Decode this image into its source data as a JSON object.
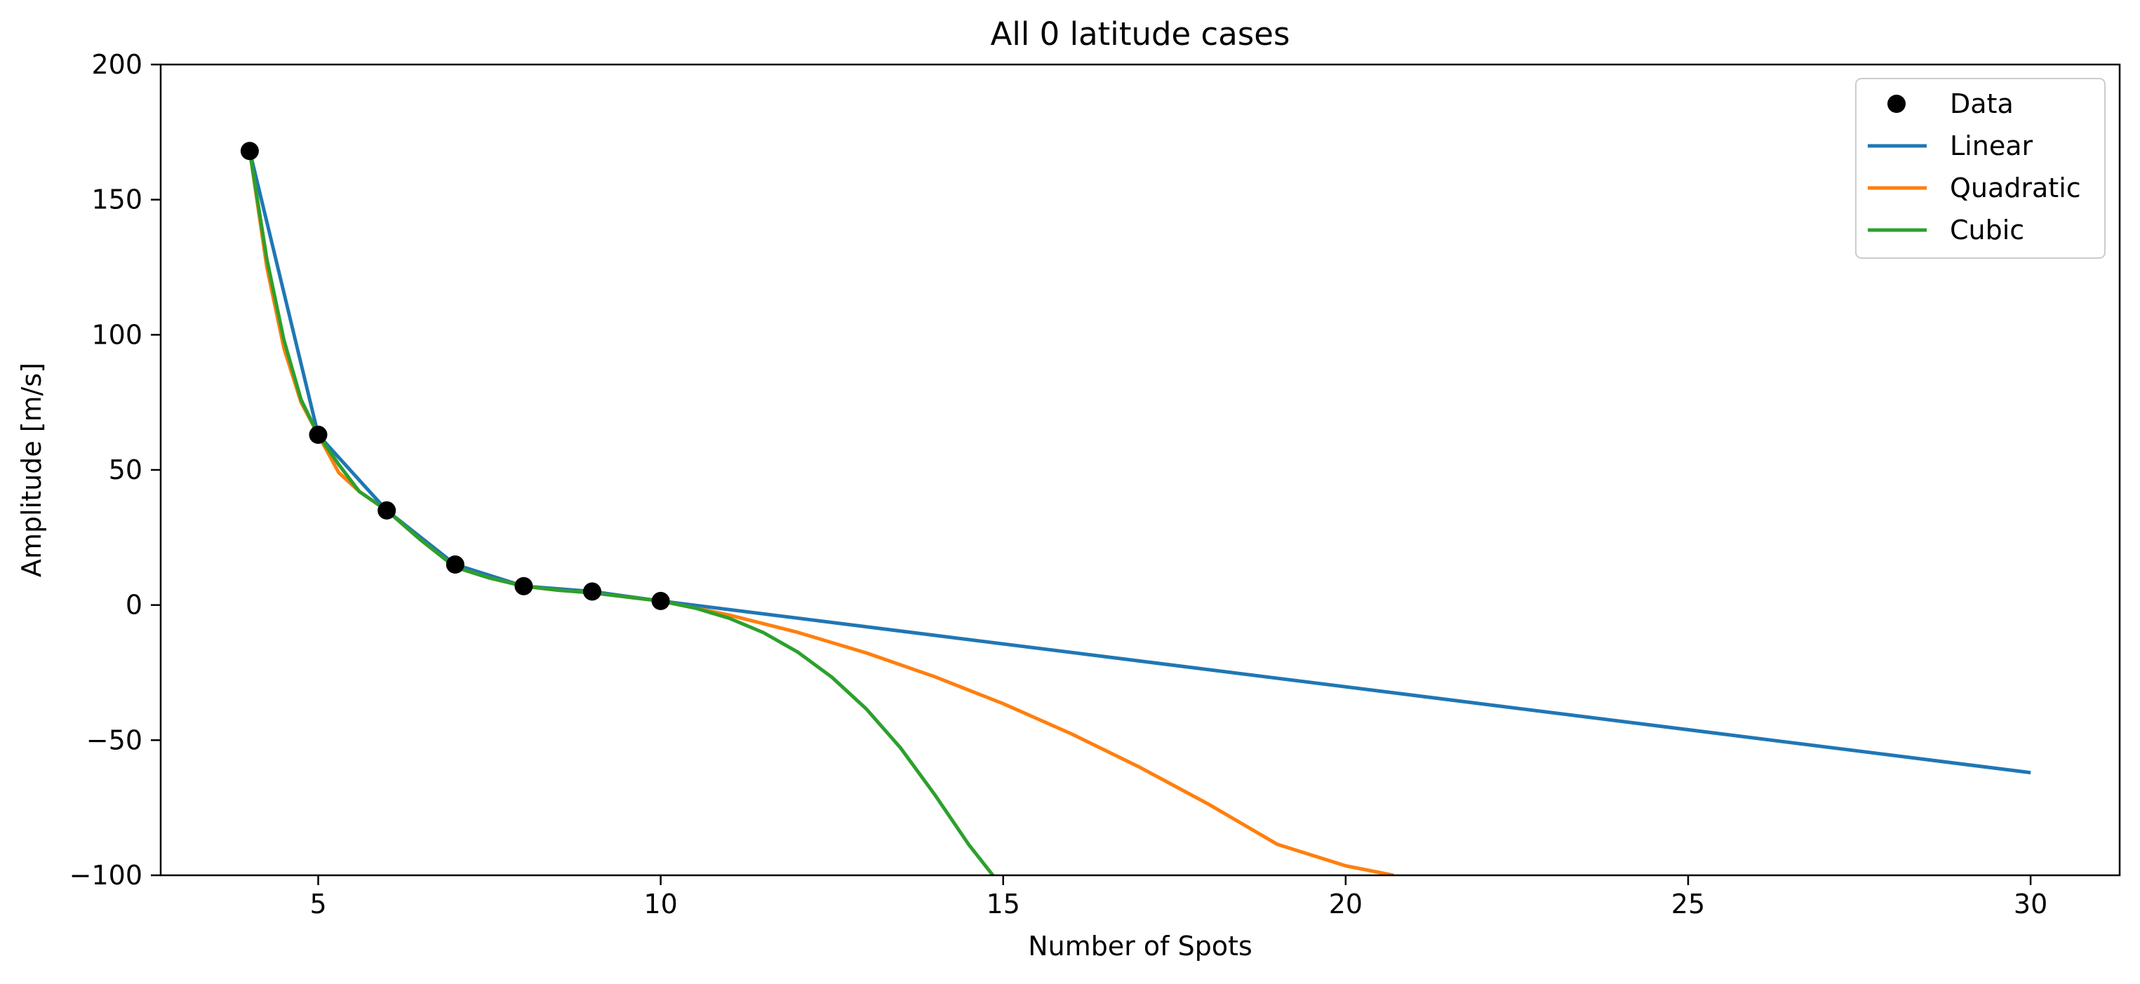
{
  "chart_data": {
    "type": "line",
    "title": "All 0 latitude cases",
    "xlabel": "Number of Spots",
    "ylabel": "Amplitude [m/s]",
    "xlim": [
      2.7,
      31.3
    ],
    "ylim": [
      -100,
      200
    ],
    "xticks": [
      5,
      10,
      15,
      20,
      25,
      30
    ],
    "yticks": [
      -100,
      -50,
      0,
      50,
      100,
      150,
      200
    ],
    "xtick_labels": [
      "5",
      "10",
      "15",
      "20",
      "25",
      "30"
    ],
    "ytick_labels": [
      "−100",
      "−50",
      "0",
      "50",
      "100",
      "150",
      "200"
    ],
    "grid": false,
    "legend_position": "top-right",
    "legend": [
      "Data",
      "Linear",
      "Quadratic",
      "Cubic"
    ],
    "colors": {
      "data": "#000000",
      "linear": "#1f77b4",
      "quadratic": "#ff7f0e",
      "cubic": "#2ca02c"
    },
    "scatter": {
      "name": "Data",
      "x": [
        4,
        5,
        6,
        7,
        8,
        9,
        10
      ],
      "y": [
        168,
        63,
        35,
        15,
        7,
        5,
        1.5
      ]
    },
    "series": [
      {
        "name": "Linear",
        "x": [
          4,
          5,
          6,
          7,
          8,
          9,
          10,
          30
        ],
        "y": [
          168,
          63,
          35,
          15,
          7,
          5,
          1.5,
          -62
        ]
      },
      {
        "name": "Quadratic",
        "x": [
          4,
          4.25,
          4.5,
          4.75,
          5,
          5.3,
          5.6,
          6,
          6.5,
          7,
          7.5,
          8,
          8.5,
          9,
          9.5,
          10,
          11,
          12,
          13,
          14,
          15,
          16,
          17,
          18,
          19,
          20,
          20.7
        ],
        "y": [
          168,
          125,
          95,
          75,
          63,
          49,
          42,
          35,
          24,
          14,
          10,
          7,
          5.5,
          4.5,
          3,
          1.5,
          -3.7,
          -10.1,
          -17.7,
          -26.5,
          -36.5,
          -47.7,
          -60.1,
          -73.7,
          -88.5,
          -96.5,
          -100
        ]
      },
      {
        "name": "Cubic",
        "x": [
          4,
          4.25,
          4.5,
          4.75,
          5,
          5.3,
          5.6,
          6,
          6.5,
          7,
          7.5,
          8,
          8.5,
          9,
          9.5,
          10,
          10.5,
          11,
          11.5,
          12,
          12.5,
          13,
          13.5,
          14,
          14.5,
          14.85
        ],
        "y": [
          168,
          128,
          98,
          76,
          63,
          52,
          42,
          35,
          24,
          14,
          10,
          7,
          5.5,
          4.5,
          3,
          1.5,
          -1.1,
          -4.9,
          -10.2,
          -17.4,
          -26.7,
          -38.4,
          -52.8,
          -70.1,
          -88.7,
          -100
        ]
      }
    ]
  }
}
